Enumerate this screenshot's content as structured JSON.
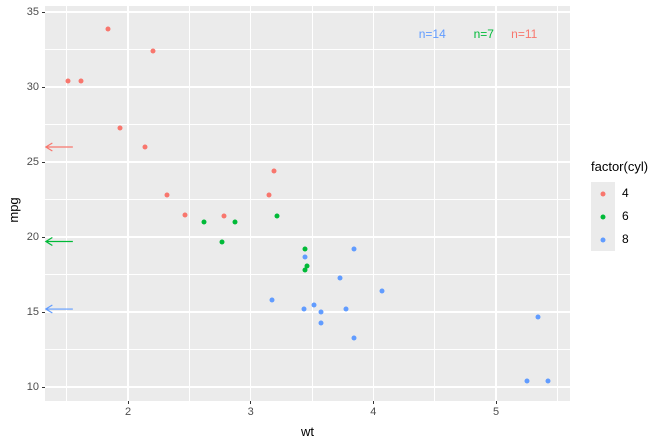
{
  "chart_data": {
    "type": "scatter",
    "title": "",
    "xlabel": "wt",
    "ylabel": "mpg",
    "xlim": [
      1.323,
      5.603
    ],
    "ylim": [
      9.07,
      35.4
    ],
    "x_ticks": [
      2,
      3,
      4,
      5
    ],
    "y_ticks": [
      10,
      15,
      20,
      25,
      30,
      35
    ],
    "x_minor": [
      1.5,
      2.5,
      3.5,
      4.5,
      5.5
    ],
    "y_minor": [
      12.5,
      17.5,
      22.5,
      27.5,
      32.5
    ],
    "grid": true,
    "legend_position": "right",
    "legend_title": "factor(cyl)",
    "series": [
      {
        "name": "4",
        "color": "#F8766D",
        "points": [
          [
            2.32,
            22.8
          ],
          [
            3.19,
            24.4
          ],
          [
            3.15,
            22.8
          ],
          [
            2.2,
            32.4
          ],
          [
            1.615,
            30.4
          ],
          [
            1.835,
            33.9
          ],
          [
            2.465,
            21.5
          ],
          [
            1.935,
            27.3
          ],
          [
            2.14,
            26.0
          ],
          [
            1.513,
            30.4
          ],
          [
            2.78,
            21.4
          ]
        ]
      },
      {
        "name": "6",
        "color": "#00BA38",
        "points": [
          [
            2.62,
            21.0
          ],
          [
            2.875,
            21.0
          ],
          [
            3.215,
            21.4
          ],
          [
            3.46,
            18.1
          ],
          [
            3.44,
            19.2
          ],
          [
            3.44,
            17.8
          ],
          [
            2.77,
            19.7
          ]
        ]
      },
      {
        "name": "8",
        "color": "#619CFF",
        "points": [
          [
            3.44,
            18.7
          ],
          [
            3.57,
            14.3
          ],
          [
            4.07,
            16.4
          ],
          [
            3.73,
            17.3
          ],
          [
            3.78,
            15.2
          ],
          [
            5.25,
            10.4
          ],
          [
            5.424,
            10.4
          ],
          [
            5.345,
            14.7
          ],
          [
            3.52,
            15.5
          ],
          [
            3.435,
            15.2
          ],
          [
            3.84,
            13.3
          ],
          [
            3.845,
            19.2
          ],
          [
            3.17,
            15.8
          ],
          [
            3.57,
            15.0
          ]
        ]
      }
    ],
    "annotations": {
      "labels": [
        {
          "text": "n=14",
          "x": 4.48,
          "y": 33.55,
          "color": "#619CFF"
        },
        {
          "text": "n=7",
          "x": 4.9,
          "y": 33.55,
          "color": "#00BA38"
        },
        {
          "text": "n=11",
          "x": 5.23,
          "y": 33.55,
          "color": "#F8766D"
        }
      ],
      "arrows": [
        {
          "y": 26.0,
          "x_from": 1.55,
          "x_to": 1.33,
          "color": "#F8766D"
        },
        {
          "y": 19.7,
          "x_from": 1.55,
          "x_to": 1.33,
          "color": "#00BA38"
        },
        {
          "y": 15.2,
          "x_from": 1.55,
          "x_to": 1.33,
          "color": "#619CFF"
        }
      ]
    },
    "colors": {
      "panel_background": "#EBEBEB",
      "gridline": "#FFFFFF",
      "axis_text": "#4D4D4D",
      "axis_title": "#000000",
      "tick_mark": "#333333",
      "legend_key_background": "#EBEBEB"
    }
  }
}
